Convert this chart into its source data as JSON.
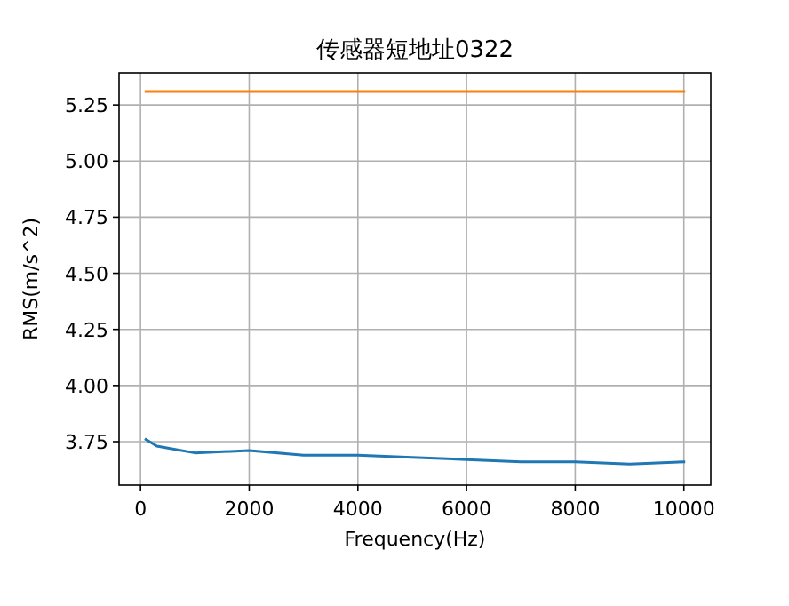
{
  "chart_data": {
    "type": "line",
    "title": "传感器短地址0322",
    "xlabel": "Frequency(Hz)",
    "ylabel": "RMS(m/s^2)",
    "xlim": [
      -395,
      10495
    ],
    "ylim": [
      3.556,
      5.393
    ],
    "xticks": [
      0,
      2000,
      4000,
      6000,
      8000,
      10000
    ],
    "yticks": [
      {
        "value": 3.75,
        "label": "3.75"
      },
      {
        "value": 4.0,
        "label": "4.00"
      },
      {
        "value": 4.25,
        "label": "4.25"
      },
      {
        "value": 4.5,
        "label": "4.50"
      },
      {
        "value": 4.75,
        "label": "4.75"
      },
      {
        "value": 5.0,
        "label": "5.00"
      },
      {
        "value": 5.25,
        "label": "5.25"
      }
    ],
    "grid": true,
    "series": [
      {
        "color": "#1f77b4",
        "x": [
          100,
          300,
          1000,
          2000,
          3000,
          4000,
          5000,
          6000,
          7000,
          8000,
          9000,
          10000
        ],
        "values": [
          3.76,
          3.73,
          3.7,
          3.71,
          3.69,
          3.69,
          3.68,
          3.67,
          3.66,
          3.66,
          3.65,
          3.66
        ]
      },
      {
        "color": "#ff7f0e",
        "x": [
          100,
          10000
        ],
        "values": [
          5.31,
          5.31
        ]
      }
    ]
  }
}
